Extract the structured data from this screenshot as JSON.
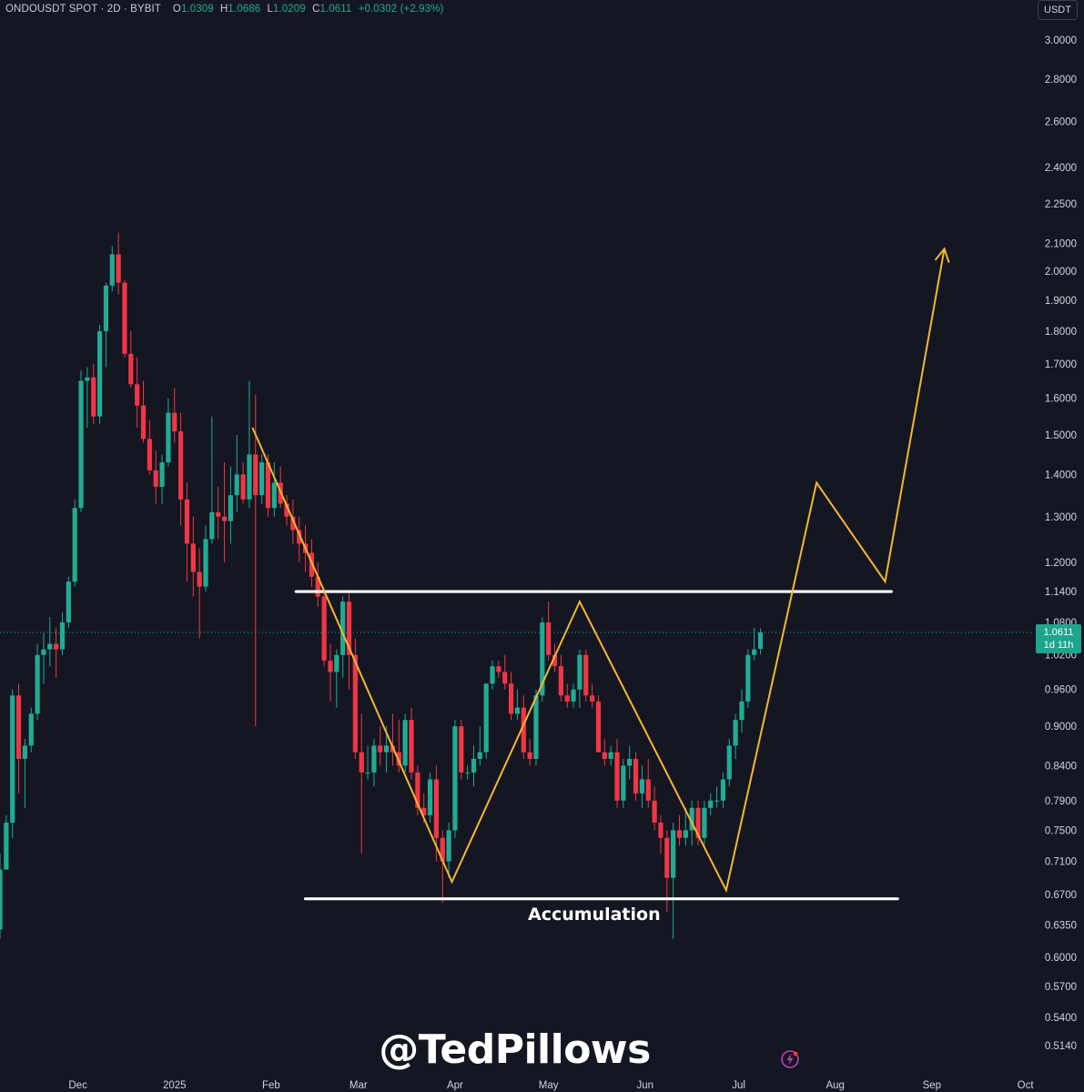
{
  "header": {
    "symbol": "ONDOUSDT SPOT",
    "interval": "2D",
    "exchange": "BYBIT",
    "open_label": "O",
    "open": "1.0309",
    "high_label": "H",
    "high": "1.0686",
    "low_label": "L",
    "low": "1.0209",
    "close_label": "C",
    "close": "1.0611",
    "change": "+0.0302 (+2.93%)"
  },
  "currency": "USDT",
  "last_price": {
    "value": "1.0611",
    "countdown": "1d 11h"
  },
  "watermark": "@TedPillows",
  "colors": {
    "up": "#22ab94",
    "down": "#f23645",
    "background": "#141722",
    "pattern": "#f5b731",
    "levels": "#ffffff"
  },
  "icons": [
    "lightning-logo-icon"
  ],
  "chart_data": {
    "type": "candlestick",
    "y_scale": "log",
    "ylim": [
      0.5,
      3.1
    ],
    "y_ticks": [
      "3.0000",
      "2.8000",
      "2.6000",
      "2.4000",
      "2.2500",
      "2.1000",
      "2.0000",
      "1.9000",
      "1.8000",
      "1.7000",
      "1.6000",
      "1.5000",
      "1.4000",
      "1.3000",
      "1.2000",
      "1.1400",
      "1.0800",
      "1.0200",
      "0.9600",
      "0.9000",
      "0.8400",
      "0.7900",
      "0.7500",
      "0.7100",
      "0.6700",
      "0.6350",
      "0.6000",
      "0.5700",
      "0.5400",
      "0.5140"
    ],
    "x_ticks": [
      {
        "label": "Dec",
        "date": "2024-12-01"
      },
      {
        "label": "2025",
        "date": "2025-01-01"
      },
      {
        "label": "Feb",
        "date": "2025-02-01"
      },
      {
        "label": "Mar",
        "date": "2025-03-01"
      },
      {
        "label": "Apr",
        "date": "2025-04-01"
      },
      {
        "label": "May",
        "date": "2025-05-01"
      },
      {
        "label": "Jun",
        "date": "2025-06-01"
      },
      {
        "label": "Jul",
        "date": "2025-07-01"
      },
      {
        "label": "Aug",
        "date": "2025-08-01"
      },
      {
        "label": "Sep",
        "date": "2025-09-01"
      },
      {
        "label": "Oct",
        "date": "2025-10-01"
      }
    ],
    "xlim": [
      "2024-11-06",
      "2025-10-02"
    ],
    "candles": [
      {
        "date": "2024-11-06",
        "o": 0.63,
        "h": 0.72,
        "l": 0.62,
        "c": 0.7
      },
      {
        "date": "2024-11-08",
        "o": 0.7,
        "h": 0.77,
        "l": 0.7,
        "c": 0.76
      },
      {
        "date": "2024-11-10",
        "o": 0.76,
        "h": 0.96,
        "l": 0.74,
        "c": 0.95
      },
      {
        "date": "2024-11-12",
        "o": 0.95,
        "h": 0.97,
        "l": 0.8,
        "c": 0.85
      },
      {
        "date": "2024-11-14",
        "o": 0.85,
        "h": 0.88,
        "l": 0.78,
        "c": 0.87
      },
      {
        "date": "2024-11-16",
        "o": 0.87,
        "h": 0.93,
        "l": 0.86,
        "c": 0.92
      },
      {
        "date": "2024-11-18",
        "o": 0.92,
        "h": 1.04,
        "l": 0.91,
        "c": 1.02
      },
      {
        "date": "2024-11-20",
        "o": 1.02,
        "h": 1.06,
        "l": 0.97,
        "c": 1.03
      },
      {
        "date": "2024-11-22",
        "o": 1.03,
        "h": 1.09,
        "l": 1.0,
        "c": 1.04
      },
      {
        "date": "2024-11-24",
        "o": 1.04,
        "h": 1.07,
        "l": 0.98,
        "c": 1.03
      },
      {
        "date": "2024-11-26",
        "o": 1.03,
        "h": 1.1,
        "l": 1.02,
        "c": 1.08
      },
      {
        "date": "2024-11-28",
        "o": 1.08,
        "h": 1.17,
        "l": 1.07,
        "c": 1.16
      },
      {
        "date": "2024-11-30",
        "o": 1.16,
        "h": 1.34,
        "l": 1.15,
        "c": 1.32
      },
      {
        "date": "2024-12-02",
        "o": 1.32,
        "h": 1.68,
        "l": 1.31,
        "c": 1.65
      },
      {
        "date": "2024-12-04",
        "o": 1.65,
        "h": 1.69,
        "l": 1.52,
        "c": 1.66
      },
      {
        "date": "2024-12-06",
        "o": 1.66,
        "h": 1.7,
        "l": 1.53,
        "c": 1.55
      },
      {
        "date": "2024-12-08",
        "o": 1.55,
        "h": 1.82,
        "l": 1.53,
        "c": 1.8
      },
      {
        "date": "2024-12-10",
        "o": 1.8,
        "h": 1.96,
        "l": 1.69,
        "c": 1.95
      },
      {
        "date": "2024-12-12",
        "o": 1.95,
        "h": 2.09,
        "l": 1.93,
        "c": 2.06
      },
      {
        "date": "2024-12-14",
        "o": 2.06,
        "h": 2.14,
        "l": 1.92,
        "c": 1.96
      },
      {
        "date": "2024-12-16",
        "o": 1.96,
        "h": 1.97,
        "l": 1.72,
        "c": 1.73
      },
      {
        "date": "2024-12-18",
        "o": 1.73,
        "h": 1.8,
        "l": 1.63,
        "c": 1.64
      },
      {
        "date": "2024-12-20",
        "o": 1.64,
        "h": 1.72,
        "l": 1.52,
        "c": 1.58
      },
      {
        "date": "2024-12-22",
        "o": 1.58,
        "h": 1.65,
        "l": 1.48,
        "c": 1.49
      },
      {
        "date": "2024-12-24",
        "o": 1.49,
        "h": 1.54,
        "l": 1.4,
        "c": 1.41
      },
      {
        "date": "2024-12-26",
        "o": 1.41,
        "h": 1.46,
        "l": 1.33,
        "c": 1.37
      },
      {
        "date": "2024-12-28",
        "o": 1.37,
        "h": 1.45,
        "l": 1.33,
        "c": 1.43
      },
      {
        "date": "2024-12-30",
        "o": 1.43,
        "h": 1.6,
        "l": 1.42,
        "c": 1.56
      },
      {
        "date": "2025-01-01",
        "o": 1.56,
        "h": 1.63,
        "l": 1.48,
        "c": 1.51
      },
      {
        "date": "2025-01-03",
        "o": 1.51,
        "h": 1.56,
        "l": 1.28,
        "c": 1.34
      },
      {
        "date": "2025-01-05",
        "o": 1.34,
        "h": 1.38,
        "l": 1.16,
        "c": 1.24
      },
      {
        "date": "2025-01-07",
        "o": 1.24,
        "h": 1.3,
        "l": 1.13,
        "c": 1.18
      },
      {
        "date": "2025-01-09",
        "o": 1.18,
        "h": 1.23,
        "l": 1.05,
        "c": 1.15
      },
      {
        "date": "2025-01-11",
        "o": 1.15,
        "h": 1.28,
        "l": 1.14,
        "c": 1.25
      },
      {
        "date": "2025-01-13",
        "o": 1.25,
        "h": 1.55,
        "l": 1.24,
        "c": 1.31
      },
      {
        "date": "2025-01-15",
        "o": 1.31,
        "h": 1.37,
        "l": 1.25,
        "c": 1.3
      },
      {
        "date": "2025-01-17",
        "o": 1.3,
        "h": 1.43,
        "l": 1.2,
        "c": 1.29
      },
      {
        "date": "2025-01-19",
        "o": 1.29,
        "h": 1.42,
        "l": 1.24,
        "c": 1.35
      },
      {
        "date": "2025-01-21",
        "o": 1.35,
        "h": 1.5,
        "l": 1.31,
        "c": 1.4
      },
      {
        "date": "2025-01-23",
        "o": 1.4,
        "h": 1.43,
        "l": 1.33,
        "c": 1.34
      },
      {
        "date": "2025-01-25",
        "o": 1.34,
        "h": 1.65,
        "l": 1.32,
        "c": 1.45
      },
      {
        "date": "2025-01-27",
        "o": 1.45,
        "h": 1.61,
        "l": 0.9,
        "c": 1.35
      },
      {
        "date": "2025-01-29",
        "o": 1.35,
        "h": 1.45,
        "l": 1.33,
        "c": 1.43
      },
      {
        "date": "2025-01-31",
        "o": 1.43,
        "h": 1.45,
        "l": 1.3,
        "c": 1.32
      },
      {
        "date": "2025-02-02",
        "o": 1.32,
        "h": 1.43,
        "l": 1.3,
        "c": 1.38
      },
      {
        "date": "2025-02-04",
        "o": 1.38,
        "h": 1.42,
        "l": 1.32,
        "c": 1.33
      },
      {
        "date": "2025-02-06",
        "o": 1.33,
        "h": 1.35,
        "l": 1.28,
        "c": 1.3
      },
      {
        "date": "2025-02-08",
        "o": 1.3,
        "h": 1.34,
        "l": 1.24,
        "c": 1.27
      },
      {
        "date": "2025-02-10",
        "o": 1.27,
        "h": 1.3,
        "l": 1.2,
        "c": 1.24
      },
      {
        "date": "2025-02-12",
        "o": 1.24,
        "h": 1.28,
        "l": 1.18,
        "c": 1.22
      },
      {
        "date": "2025-02-14",
        "o": 1.22,
        "h": 1.25,
        "l": 1.15,
        "c": 1.17
      },
      {
        "date": "2025-02-16",
        "o": 1.17,
        "h": 1.2,
        "l": 1.11,
        "c": 1.13
      },
      {
        "date": "2025-02-18",
        "o": 1.13,
        "h": 1.14,
        "l": 1.0,
        "c": 1.01
      },
      {
        "date": "2025-02-20",
        "o": 1.01,
        "h": 1.04,
        "l": 0.94,
        "c": 0.99
      },
      {
        "date": "2025-02-22",
        "o": 0.99,
        "h": 1.03,
        "l": 0.93,
        "c": 1.02
      },
      {
        "date": "2025-02-24",
        "o": 1.02,
        "h": 1.13,
        "l": 0.98,
        "c": 1.12
      },
      {
        "date": "2025-02-26",
        "o": 1.12,
        "h": 1.14,
        "l": 0.96,
        "c": 1.02
      },
      {
        "date": "2025-02-28",
        "o": 1.02,
        "h": 1.05,
        "l": 0.85,
        "c": 0.86
      },
      {
        "date": "2025-03-02",
        "o": 0.86,
        "h": 0.92,
        "l": 0.72,
        "c": 0.83
      },
      {
        "date": "2025-03-04",
        "o": 0.83,
        "h": 0.87,
        "l": 0.82,
        "c": 0.83
      },
      {
        "date": "2025-03-06",
        "o": 0.83,
        "h": 0.88,
        "l": 0.81,
        "c": 0.87
      },
      {
        "date": "2025-03-08",
        "o": 0.87,
        "h": 0.9,
        "l": 0.84,
        "c": 0.86
      },
      {
        "date": "2025-03-10",
        "o": 0.86,
        "h": 0.9,
        "l": 0.83,
        "c": 0.87
      },
      {
        "date": "2025-03-12",
        "o": 0.87,
        "h": 0.92,
        "l": 0.84,
        "c": 0.86
      },
      {
        "date": "2025-03-14",
        "o": 0.86,
        "h": 0.91,
        "l": 0.83,
        "c": 0.84
      },
      {
        "date": "2025-03-16",
        "o": 0.84,
        "h": 0.92,
        "l": 0.83,
        "c": 0.91
      },
      {
        "date": "2025-03-18",
        "o": 0.91,
        "h": 0.93,
        "l": 0.82,
        "c": 0.83
      },
      {
        "date": "2025-03-20",
        "o": 0.83,
        "h": 0.84,
        "l": 0.77,
        "c": 0.78
      },
      {
        "date": "2025-03-22",
        "o": 0.78,
        "h": 0.8,
        "l": 0.76,
        "c": 0.77
      },
      {
        "date": "2025-03-24",
        "o": 0.77,
        "h": 0.83,
        "l": 0.76,
        "c": 0.82
      },
      {
        "date": "2025-03-26",
        "o": 0.82,
        "h": 0.84,
        "l": 0.71,
        "c": 0.74
      },
      {
        "date": "2025-03-28",
        "o": 0.74,
        "h": 0.75,
        "l": 0.66,
        "c": 0.71
      },
      {
        "date": "2025-03-30",
        "o": 0.71,
        "h": 0.76,
        "l": 0.69,
        "c": 0.75
      },
      {
        "date": "2025-04-01",
        "o": 0.75,
        "h": 0.91,
        "l": 0.74,
        "c": 0.9
      },
      {
        "date": "2025-04-03",
        "o": 0.9,
        "h": 0.91,
        "l": 0.82,
        "c": 0.83
      },
      {
        "date": "2025-04-05",
        "o": 0.83,
        "h": 0.84,
        "l": 0.82,
        "c": 0.83
      },
      {
        "date": "2025-04-07",
        "o": 0.83,
        "h": 0.87,
        "l": 0.81,
        "c": 0.85
      },
      {
        "date": "2025-04-09",
        "o": 0.85,
        "h": 0.9,
        "l": 0.84,
        "c": 0.86
      },
      {
        "date": "2025-04-11",
        "o": 0.86,
        "h": 0.97,
        "l": 0.85,
        "c": 0.97
      },
      {
        "date": "2025-04-13",
        "o": 0.97,
        "h": 1.01,
        "l": 0.96,
        "c": 1.0
      },
      {
        "date": "2025-04-15",
        "o": 1.0,
        "h": 1.01,
        "l": 0.98,
        "c": 0.99
      },
      {
        "date": "2025-04-17",
        "o": 0.99,
        "h": 1.02,
        "l": 0.96,
        "c": 0.97
      },
      {
        "date": "2025-04-19",
        "o": 0.97,
        "h": 0.99,
        "l": 0.91,
        "c": 0.92
      },
      {
        "date": "2025-04-21",
        "o": 0.92,
        "h": 0.96,
        "l": 0.91,
        "c": 0.93
      },
      {
        "date": "2025-04-23",
        "o": 0.93,
        "h": 0.95,
        "l": 0.85,
        "c": 0.86
      },
      {
        "date": "2025-04-25",
        "o": 0.86,
        "h": 0.88,
        "l": 0.84,
        "c": 0.85
      },
      {
        "date": "2025-04-27",
        "o": 0.85,
        "h": 0.96,
        "l": 0.84,
        "c": 0.95
      },
      {
        "date": "2025-04-29",
        "o": 0.95,
        "h": 1.09,
        "l": 0.94,
        "c": 1.08
      },
      {
        "date": "2025-05-01",
        "o": 1.08,
        "h": 1.12,
        "l": 1.01,
        "c": 1.02
      },
      {
        "date": "2025-05-03",
        "o": 1.02,
        "h": 1.04,
        "l": 0.99,
        "c": 1.0
      },
      {
        "date": "2025-05-05",
        "o": 1.0,
        "h": 1.02,
        "l": 0.94,
        "c": 0.95
      },
      {
        "date": "2025-05-07",
        "o": 0.95,
        "h": 0.97,
        "l": 0.93,
        "c": 0.94
      },
      {
        "date": "2025-05-09",
        "o": 0.94,
        "h": 0.97,
        "l": 0.93,
        "c": 0.96
      },
      {
        "date": "2025-05-11",
        "o": 0.96,
        "h": 1.03,
        "l": 0.93,
        "c": 1.02
      },
      {
        "date": "2025-05-13",
        "o": 1.02,
        "h": 1.03,
        "l": 0.94,
        "c": 0.95
      },
      {
        "date": "2025-05-15",
        "o": 0.95,
        "h": 0.97,
        "l": 0.93,
        "c": 0.94
      },
      {
        "date": "2025-05-17",
        "o": 0.94,
        "h": 0.95,
        "l": 0.86,
        "c": 0.86
      },
      {
        "date": "2025-05-19",
        "o": 0.86,
        "h": 0.88,
        "l": 0.84,
        "c": 0.85
      },
      {
        "date": "2025-05-21",
        "o": 0.85,
        "h": 0.87,
        "l": 0.84,
        "c": 0.86
      },
      {
        "date": "2025-05-23",
        "o": 0.86,
        "h": 0.88,
        "l": 0.78,
        "c": 0.79
      },
      {
        "date": "2025-05-25",
        "o": 0.79,
        "h": 0.85,
        "l": 0.78,
        "c": 0.84
      },
      {
        "date": "2025-05-27",
        "o": 0.84,
        "h": 0.87,
        "l": 0.82,
        "c": 0.85
      },
      {
        "date": "2025-05-29",
        "o": 0.85,
        "h": 0.86,
        "l": 0.79,
        "c": 0.8
      },
      {
        "date": "2025-05-31",
        "o": 0.8,
        "h": 0.84,
        "l": 0.78,
        "c": 0.82
      },
      {
        "date": "2025-06-02",
        "o": 0.82,
        "h": 0.85,
        "l": 0.78,
        "c": 0.79
      },
      {
        "date": "2025-06-04",
        "o": 0.79,
        "h": 0.81,
        "l": 0.75,
        "c": 0.76
      },
      {
        "date": "2025-06-06",
        "o": 0.76,
        "h": 0.77,
        "l": 0.72,
        "c": 0.74
      },
      {
        "date": "2025-06-08",
        "o": 0.74,
        "h": 0.75,
        "l": 0.65,
        "c": 0.69
      },
      {
        "date": "2025-06-10",
        "o": 0.69,
        "h": 0.76,
        "l": 0.62,
        "c": 0.75
      },
      {
        "date": "2025-06-12",
        "o": 0.75,
        "h": 0.77,
        "l": 0.73,
        "c": 0.74
      },
      {
        "date": "2025-06-14",
        "o": 0.74,
        "h": 0.78,
        "l": 0.73,
        "c": 0.75
      },
      {
        "date": "2025-06-16",
        "o": 0.75,
        "h": 0.79,
        "l": 0.73,
        "c": 0.78
      },
      {
        "date": "2025-06-18",
        "o": 0.78,
        "h": 0.79,
        "l": 0.73,
        "c": 0.74
      },
      {
        "date": "2025-06-20",
        "o": 0.74,
        "h": 0.79,
        "l": 0.73,
        "c": 0.78
      },
      {
        "date": "2025-06-22",
        "o": 0.78,
        "h": 0.8,
        "l": 0.77,
        "c": 0.79
      },
      {
        "date": "2025-06-24",
        "o": 0.79,
        "h": 0.81,
        "l": 0.78,
        "c": 0.79
      },
      {
        "date": "2025-06-26",
        "o": 0.79,
        "h": 0.83,
        "l": 0.78,
        "c": 0.82
      },
      {
        "date": "2025-06-28",
        "o": 0.82,
        "h": 0.88,
        "l": 0.81,
        "c": 0.87
      },
      {
        "date": "2025-06-30",
        "o": 0.87,
        "h": 0.92,
        "l": 0.85,
        "c": 0.91
      },
      {
        "date": "2025-07-02",
        "o": 0.91,
        "h": 0.96,
        "l": 0.89,
        "c": 0.94
      },
      {
        "date": "2025-07-04",
        "o": 0.94,
        "h": 1.03,
        "l": 0.93,
        "c": 1.02
      },
      {
        "date": "2025-07-06",
        "o": 1.02,
        "h": 1.07,
        "l": 1.01,
        "c": 1.03
      },
      {
        "date": "2025-07-08",
        "o": 1.0309,
        "h": 1.0686,
        "l": 1.0209,
        "c": 1.0611
      }
    ],
    "last_price": 1.0611,
    "levels": [
      {
        "name": "resistance",
        "price": 1.14,
        "from": "2025-02-09",
        "to": "2025-08-19"
      },
      {
        "name": "support",
        "price": 0.665,
        "from": "2025-02-12",
        "to": "2025-08-21"
      }
    ],
    "pattern_path": [
      {
        "date": "2025-01-26",
        "price": 1.52
      },
      {
        "date": "2025-03-31",
        "price": 0.685
      },
      {
        "date": "2025-05-11",
        "price": 1.12
      },
      {
        "date": "2025-06-27",
        "price": 0.675
      },
      {
        "date": "2025-07-26",
        "price": 1.38
      },
      {
        "date": "2025-08-17",
        "price": 1.16
      },
      {
        "date": "2025-09-05",
        "price": 2.08
      }
    ],
    "annotations": [
      {
        "text": "Accumulation",
        "date": "2025-04-30",
        "price": 0.645
      }
    ]
  }
}
